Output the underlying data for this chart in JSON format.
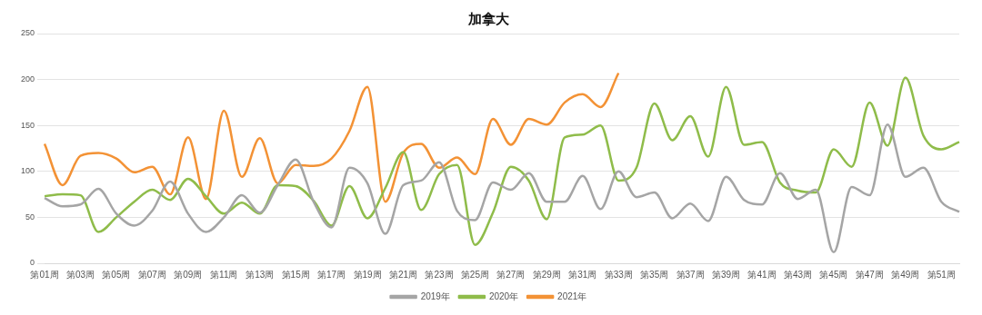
{
  "chart_data": {
    "type": "line",
    "title": "加拿大",
    "categories": [
      "第01周",
      null,
      "第03周",
      null,
      "第05周",
      null,
      "第07周",
      null,
      "第09周",
      null,
      "第11周",
      null,
      "第13周",
      null,
      "第15周",
      null,
      "第17周",
      null,
      "第19周",
      null,
      "第21周",
      null,
      "第23周",
      null,
      "第25周",
      null,
      "第27周",
      null,
      "第29周",
      null,
      "第31周",
      null,
      "第33周",
      null,
      "第35周",
      null,
      "第37周",
      null,
      "第39周",
      null,
      "第41周",
      null,
      "第43周",
      null,
      "第45周",
      null,
      "第47周",
      null,
      "第49周",
      null,
      "第51周",
      null
    ],
    "series": [
      {
        "name": "2019年",
        "color": "#a5a5a5",
        "values": [
          71,
          62,
          64,
          81,
          54,
          41,
          57,
          89,
          54,
          34,
          50,
          74,
          55,
          85,
          113,
          67,
          39,
          104,
          87,
          32,
          85,
          90,
          110,
          57,
          47,
          88,
          80,
          98,
          67,
          67,
          95,
          59,
          100,
          72,
          77,
          49,
          65,
          46,
          94,
          69,
          64,
          98,
          70,
          80,
          12,
          83,
          74,
          151,
          94,
          104,
          67,
          56
        ]
      },
      {
        "name": "2020年",
        "color": "#8fbc4a",
        "values": [
          73,
          75,
          74,
          34,
          50,
          67,
          80,
          69,
          92,
          73,
          54,
          66,
          54,
          85,
          84,
          68,
          41,
          84,
          49,
          82,
          121,
          58,
          97,
          107,
          20,
          55,
          105,
          90,
          48,
          137,
          140,
          150,
          90,
          104,
          174,
          134,
          160,
          116,
          192,
          129,
          132,
          88,
          79,
          77,
          124,
          105,
          175,
          128,
          202,
          139,
          124,
          132
        ]
      },
      {
        "name": "2021年",
        "color": "#f39235",
        "values": [
          130,
          85,
          117,
          120,
          114,
          99,
          105,
          75,
          137,
          70,
          166,
          94,
          136,
          87,
          107,
          106,
          114,
          144,
          192,
          67,
          120,
          130,
          104,
          115,
          97,
          157,
          129,
          157,
          151,
          175,
          184,
          170,
          207,
          null,
          null,
          null,
          null,
          null,
          null,
          null,
          null,
          null,
          null,
          null,
          null,
          null,
          null,
          null,
          null,
          null,
          null,
          null
        ]
      }
    ],
    "ylim": [
      0,
      250
    ],
    "yticks": [
      0,
      50,
      100,
      150,
      200,
      250
    ],
    "grid": "y",
    "legend": "bottom",
    "marker": "none",
    "line_style": "solid"
  }
}
